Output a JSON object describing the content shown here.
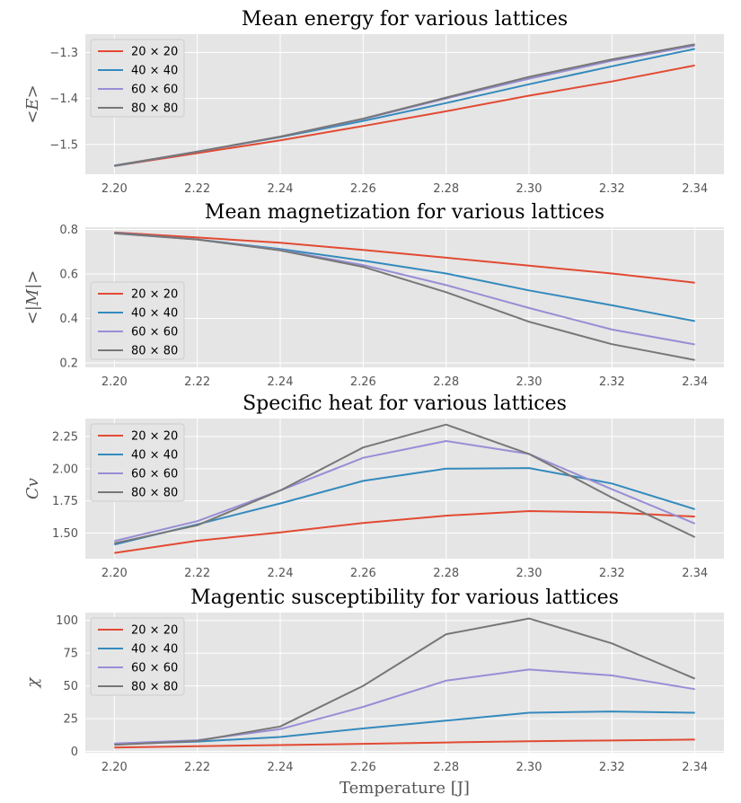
{
  "colors": {
    "background": "#E5E5E5",
    "grid": "#FFFFFF",
    "series": [
      "#E24A33",
      "#348ABD",
      "#988ED5",
      "#777777"
    ]
  },
  "chart_data": [
    {
      "type": "line",
      "title": "Mean energy for various lattices",
      "ylabel": "<E>",
      "xlabel": "",
      "x": [
        2.2,
        2.22,
        2.24,
        2.26,
        2.28,
        2.3,
        2.32,
        2.34
      ],
      "xticks": [
        "2.20",
        "2.22",
        "2.24",
        "2.26",
        "2.28",
        "2.30",
        "2.32",
        "2.34"
      ],
      "xlim": [
        2.193,
        2.347
      ],
      "ylim": [
        -1.565,
        -1.26
      ],
      "yticks": [
        -1.5,
        -1.4,
        -1.3
      ],
      "ytick_labels": [
        "−1.5",
        "−1.4",
        "−1.3"
      ],
      "grid": true,
      "legend": "upper-left",
      "series": [
        {
          "name": "20 × 20",
          "values": [
            -1.547,
            -1.519,
            -1.491,
            -1.46,
            -1.428,
            -1.394,
            -1.363,
            -1.328
          ]
        },
        {
          "name": "40 × 40",
          "values": [
            -1.547,
            -1.516,
            -1.484,
            -1.449,
            -1.41,
            -1.369,
            -1.33,
            -1.292
          ]
        },
        {
          "name": "60 × 60",
          "values": [
            -1.546,
            -1.516,
            -1.483,
            -1.445,
            -1.4,
            -1.357,
            -1.318,
            -1.285
          ]
        },
        {
          "name": "80 × 80",
          "values": [
            -1.546,
            -1.516,
            -1.483,
            -1.444,
            -1.398,
            -1.353,
            -1.315,
            -1.282
          ]
        }
      ]
    },
    {
      "type": "line",
      "title": "Mean magnetization for various lattices",
      "ylabel": "<|M|>",
      "xlabel": "",
      "x": [
        2.2,
        2.22,
        2.24,
        2.26,
        2.28,
        2.3,
        2.32,
        2.34
      ],
      "xticks": [
        "2.20",
        "2.22",
        "2.24",
        "2.26",
        "2.28",
        "2.30",
        "2.32",
        "2.34"
      ],
      "xlim": [
        2.193,
        2.347
      ],
      "ylim": [
        0.18,
        0.81
      ],
      "yticks": [
        0.2,
        0.4,
        0.6,
        0.8
      ],
      "ytick_labels": [
        "0.2",
        "0.4",
        "0.6",
        "0.8"
      ],
      "grid": true,
      "legend": "lower-left",
      "series": [
        {
          "name": "20 × 20",
          "values": [
            0.787,
            0.764,
            0.74,
            0.708,
            0.673,
            0.637,
            0.602,
            0.561
          ]
        },
        {
          "name": "40 × 40",
          "values": [
            0.785,
            0.755,
            0.712,
            0.66,
            0.602,
            0.526,
            0.459,
            0.388
          ]
        },
        {
          "name": "60 × 60",
          "values": [
            0.783,
            0.755,
            0.708,
            0.64,
            0.55,
            0.447,
            0.35,
            0.283
          ]
        },
        {
          "name": "80 × 80",
          "values": [
            0.783,
            0.755,
            0.706,
            0.632,
            0.518,
            0.385,
            0.284,
            0.213
          ]
        }
      ]
    },
    {
      "type": "line",
      "title": "Specific heat for various lattices",
      "ylabel": "Cv",
      "xlabel": "",
      "x": [
        2.2,
        2.22,
        2.24,
        2.26,
        2.28,
        2.3,
        2.32,
        2.34
      ],
      "xticks": [
        "2.20",
        "2.22",
        "2.24",
        "2.26",
        "2.28",
        "2.30",
        "2.32",
        "2.34"
      ],
      "xlim": [
        2.193,
        2.347
      ],
      "ylim": [
        1.3,
        2.39
      ],
      "yticks": [
        1.5,
        1.75,
        2.0,
        2.25
      ],
      "ytick_labels": [
        "1.50",
        "1.75",
        "2.00",
        "2.25"
      ],
      "grid": true,
      "legend": "upper-left",
      "series": [
        {
          "name": "20 × 20",
          "values": [
            1.345,
            1.44,
            1.505,
            1.578,
            1.635,
            1.67,
            1.66,
            1.628
          ]
        },
        {
          "name": "40 × 40",
          "values": [
            1.41,
            1.567,
            1.73,
            1.905,
            2.0,
            2.005,
            1.885,
            1.685
          ]
        },
        {
          "name": "60 × 60",
          "values": [
            1.437,
            1.592,
            1.83,
            2.085,
            2.215,
            2.115,
            1.84,
            1.573
          ]
        },
        {
          "name": "80 × 80",
          "values": [
            1.42,
            1.56,
            1.83,
            2.165,
            2.343,
            2.115,
            1.775,
            1.468
          ]
        }
      ]
    },
    {
      "type": "line",
      "title": "Magentic susceptibility for various lattices",
      "ylabel": "χ",
      "xlabel": "Temperature [J]",
      "x": [
        2.2,
        2.22,
        2.24,
        2.26,
        2.28,
        2.3,
        2.32,
        2.34
      ],
      "xticks": [
        "2.20",
        "2.22",
        "2.24",
        "2.26",
        "2.28",
        "2.30",
        "2.32",
        "2.34"
      ],
      "xlim": [
        2.193,
        2.347
      ],
      "ylim": [
        -1,
        106
      ],
      "yticks": [
        0,
        25,
        50,
        75,
        100
      ],
      "ytick_labels": [
        "0",
        "25",
        "50",
        "75",
        "100"
      ],
      "grid": true,
      "legend": "upper-left",
      "series": [
        {
          "name": "20 × 20",
          "values": [
            3.0,
            4.0,
            4.8,
            5.8,
            6.8,
            7.8,
            8.3,
            9.0
          ]
        },
        {
          "name": "40 × 40",
          "values": [
            5.5,
            7.5,
            11.0,
            17.5,
            23.5,
            29.5,
            30.5,
            29.5
          ]
        },
        {
          "name": "60 × 60",
          "values": [
            6.0,
            8.5,
            17.0,
            34.0,
            54.0,
            62.5,
            58.0,
            47.5
          ]
        },
        {
          "name": "80 × 80",
          "values": [
            5.0,
            8.0,
            19.0,
            50.0,
            89.5,
            101.5,
            82.5,
            55.5
          ]
        }
      ]
    }
  ]
}
